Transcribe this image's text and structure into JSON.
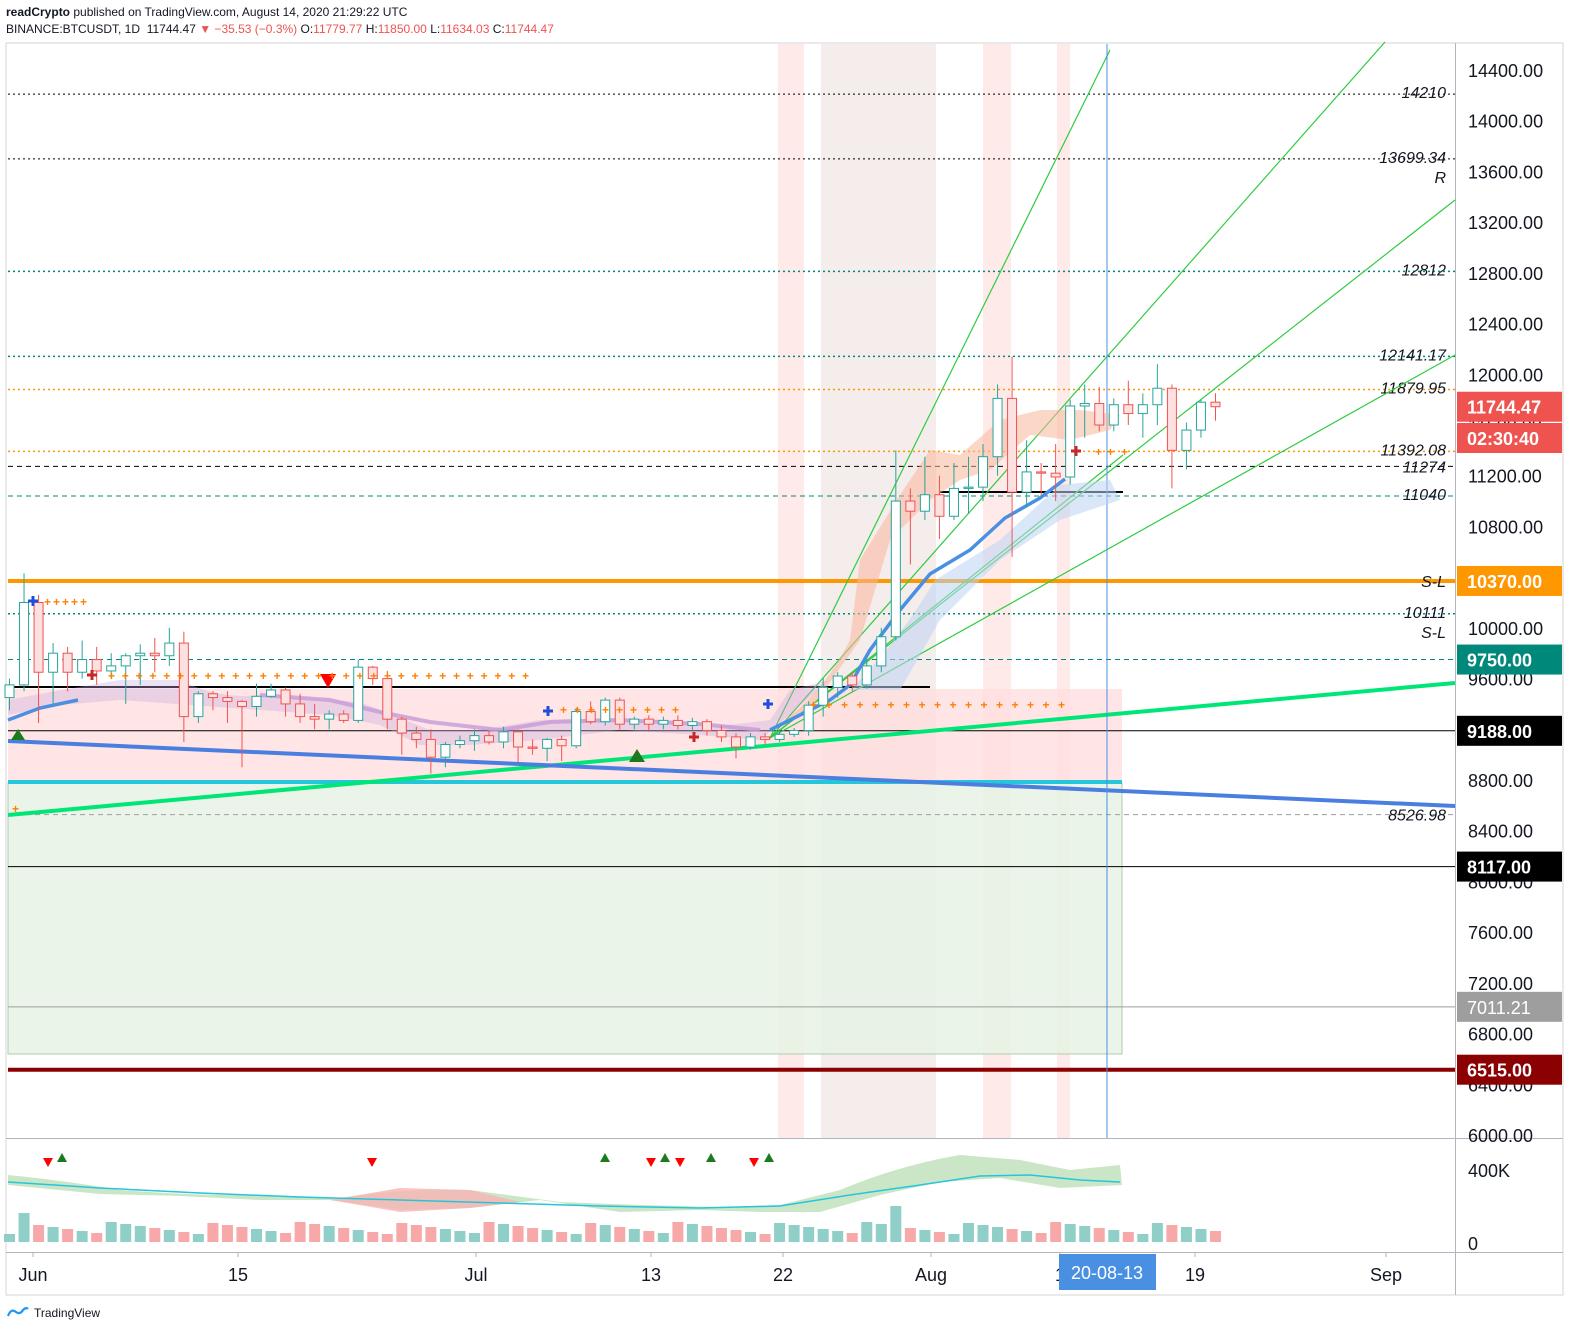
{
  "header": {
    "publisher": "readCrypto",
    "published_text": "published on TradingView.com, August 14, 2020 21:29:22 UTC",
    "symbol": "BINANCE:BTCUSDT, 1D",
    "last": "11744.47",
    "change": "▼ −35.53 (−0.3%)",
    "o_label": "O:",
    "o": "11779.77",
    "h_label": "H:",
    "h": "11850.00",
    "l_label": "L:",
    "l": "11634.03",
    "c_label": "C:",
    "c": "11744.47"
  },
  "footer": {
    "brand": "TradingView"
  },
  "colors": {
    "up": "#26a69a",
    "down": "#ef5350",
    "orange": "#ff9800",
    "green": "#00e676",
    "blue": "#4a90e2"
  },
  "chart_data": {
    "type": "candlestick",
    "timeframe": "1D",
    "ylim": [
      6000,
      14600
    ],
    "y_ticks": [
      "14400.00",
      "14000.00",
      "13600.00",
      "13200.00",
      "12800.00",
      "12400.00",
      "12000.00",
      "11600.00",
      "11200.00",
      "10800.00",
      "10400.00",
      "10000.00",
      "9600.00",
      "9200.00",
      "8800.00",
      "8400.00",
      "8000.00",
      "7600.00",
      "7200.00",
      "6800.00",
      "6400.00",
      "6000.00"
    ],
    "x_ticks": [
      {
        "label": "Jun",
        "day": 1
      },
      {
        "label": "15",
        "day": 15
      },
      {
        "label": "Jul",
        "day": 31
      },
      {
        "label": "13",
        "day": 43
      },
      {
        "label": "22",
        "day": 52
      },
      {
        "label": "Aug",
        "day": 62
      },
      {
        "label": "1",
        "day": 71
      },
      {
        "label": "19",
        "day": 80
      },
      {
        "label": "Sep",
        "day": 93
      }
    ],
    "cursor_date": "20-08-13",
    "candles": [
      {
        "o": 9450,
        "h": 9600,
        "l": 9350,
        "c": 9550
      },
      {
        "o": 9550,
        "h": 10430,
        "l": 9500,
        "c": 10200
      },
      {
        "o": 10200,
        "h": 10260,
        "l": 9250,
        "c": 9650
      },
      {
        "o": 9650,
        "h": 9880,
        "l": 9400,
        "c": 9800
      },
      {
        "o": 9800,
        "h": 9850,
        "l": 9500,
        "c": 9650
      },
      {
        "o": 9650,
        "h": 9900,
        "l": 9600,
        "c": 9750
      },
      {
        "o": 9750,
        "h": 9850,
        "l": 9550,
        "c": 9660
      },
      {
        "o": 9660,
        "h": 9800,
        "l": 9600,
        "c": 9700
      },
      {
        "o": 9700,
        "h": 9800,
        "l": 9400,
        "c": 9780
      },
      {
        "o": 9780,
        "h": 9870,
        "l": 9550,
        "c": 9800
      },
      {
        "o": 9800,
        "h": 9920,
        "l": 9650,
        "c": 9780
      },
      {
        "o": 9780,
        "h": 10000,
        "l": 9700,
        "c": 9880
      },
      {
        "o": 9880,
        "h": 9970,
        "l": 9100,
        "c": 9300
      },
      {
        "o": 9300,
        "h": 9500,
        "l": 9250,
        "c": 9480
      },
      {
        "o": 9480,
        "h": 9500,
        "l": 9350,
        "c": 9450
      },
      {
        "o": 9450,
        "h": 9500,
        "l": 9250,
        "c": 9420
      },
      {
        "o": 9420,
        "h": 9430,
        "l": 8900,
        "c": 9380
      },
      {
        "o": 9380,
        "h": 9560,
        "l": 9300,
        "c": 9460
      },
      {
        "o": 9460,
        "h": 9560,
        "l": 9450,
        "c": 9510
      },
      {
        "o": 9510,
        "h": 9530,
        "l": 9300,
        "c": 9400
      },
      {
        "o": 9400,
        "h": 9480,
        "l": 9250,
        "c": 9300
      },
      {
        "o": 9300,
        "h": 9400,
        "l": 9200,
        "c": 9280
      },
      {
        "o": 9280,
        "h": 9350,
        "l": 9200,
        "c": 9320
      },
      {
        "o": 9320,
        "h": 9350,
        "l": 9250,
        "c": 9270
      },
      {
        "o": 9270,
        "h": 9750,
        "l": 9250,
        "c": 9690
      },
      {
        "o": 9690,
        "h": 9700,
        "l": 9550,
        "c": 9600
      },
      {
        "o": 9600,
        "h": 9660,
        "l": 9200,
        "c": 9280
      },
      {
        "o": 9280,
        "h": 9300,
        "l": 9000,
        "c": 9170
      },
      {
        "o": 9170,
        "h": 9220,
        "l": 9050,
        "c": 9120
      },
      {
        "o": 9120,
        "h": 9200,
        "l": 8850,
        "c": 8980
      },
      {
        "o": 8980,
        "h": 9100,
        "l": 8900,
        "c": 9080
      },
      {
        "o": 9080,
        "h": 9150,
        "l": 9050,
        "c": 9110
      },
      {
        "o": 9110,
        "h": 9200,
        "l": 9030,
        "c": 9150
      },
      {
        "o": 9150,
        "h": 9190,
        "l": 9080,
        "c": 9100
      },
      {
        "o": 9100,
        "h": 9220,
        "l": 9050,
        "c": 9180
      },
      {
        "o": 9180,
        "h": 9200,
        "l": 8940,
        "c": 9060
      },
      {
        "o": 9060,
        "h": 9120,
        "l": 9000,
        "c": 9050
      },
      {
        "o": 9050,
        "h": 9130,
        "l": 8950,
        "c": 9120
      },
      {
        "o": 9120,
        "h": 9150,
        "l": 8950,
        "c": 9070
      },
      {
        "o": 9070,
        "h": 9370,
        "l": 9050,
        "c": 9340
      },
      {
        "o": 9340,
        "h": 9420,
        "l": 9240,
        "c": 9260
      },
      {
        "o": 9260,
        "h": 9450,
        "l": 9230,
        "c": 9430
      },
      {
        "o": 9430,
        "h": 9450,
        "l": 9200,
        "c": 9240
      },
      {
        "o": 9240,
        "h": 9300,
        "l": 9200,
        "c": 9280
      },
      {
        "o": 9280,
        "h": 9310,
        "l": 9180,
        "c": 9240
      },
      {
        "o": 9240,
        "h": 9300,
        "l": 9200,
        "c": 9270
      },
      {
        "o": 9270,
        "h": 9310,
        "l": 9200,
        "c": 9230
      },
      {
        "o": 9230,
        "h": 9290,
        "l": 9180,
        "c": 9260
      },
      {
        "o": 9260,
        "h": 9280,
        "l": 9150,
        "c": 9190
      },
      {
        "o": 9190,
        "h": 9230,
        "l": 9100,
        "c": 9140
      },
      {
        "o": 9140,
        "h": 9170,
        "l": 8970,
        "c": 9060
      },
      {
        "o": 9060,
        "h": 9170,
        "l": 9040,
        "c": 9140
      },
      {
        "o": 9140,
        "h": 9170,
        "l": 9080,
        "c": 9120
      },
      {
        "o": 9120,
        "h": 9200,
        "l": 9100,
        "c": 9160
      },
      {
        "o": 9160,
        "h": 9210,
        "l": 9140,
        "c": 9190
      },
      {
        "o": 9190,
        "h": 9420,
        "l": 9150,
        "c": 9390
      },
      {
        "o": 9390,
        "h": 9600,
        "l": 9300,
        "c": 9530
      },
      {
        "o": 9530,
        "h": 9650,
        "l": 9450,
        "c": 9620
      },
      {
        "o": 9620,
        "h": 9650,
        "l": 9500,
        "c": 9550
      },
      {
        "o": 9550,
        "h": 9750,
        "l": 9520,
        "c": 9700
      },
      {
        "o": 9700,
        "h": 10000,
        "l": 9650,
        "c": 9930
      },
      {
        "o": 9930,
        "h": 11400,
        "l": 9900,
        "c": 11000
      },
      {
        "o": 11000,
        "h": 11100,
        "l": 10500,
        "c": 10920
      },
      {
        "o": 10920,
        "h": 11350,
        "l": 10850,
        "c": 11050
      },
      {
        "o": 11050,
        "h": 11200,
        "l": 10700,
        "c": 10880
      },
      {
        "o": 10880,
        "h": 11300,
        "l": 10850,
        "c": 11100
      },
      {
        "o": 11100,
        "h": 11350,
        "l": 10900,
        "c": 11110
      },
      {
        "o": 11110,
        "h": 11450,
        "l": 11000,
        "c": 11350
      },
      {
        "o": 11350,
        "h": 11920,
        "l": 11200,
        "c": 11810
      },
      {
        "o": 11810,
        "h": 12140,
        "l": 10560,
        "c": 11070
      },
      {
        "o": 11070,
        "h": 11480,
        "l": 10950,
        "c": 11230
      },
      {
        "o": 11230,
        "h": 11300,
        "l": 11050,
        "c": 11220
      },
      {
        "o": 11220,
        "h": 11450,
        "l": 11000,
        "c": 11190
      },
      {
        "o": 11190,
        "h": 11800,
        "l": 11130,
        "c": 11750
      },
      {
        "o": 11750,
        "h": 11920,
        "l": 11500,
        "c": 11770
      },
      {
        "o": 11770,
        "h": 11900,
        "l": 11550,
        "c": 11600
      },
      {
        "o": 11600,
        "h": 11810,
        "l": 11550,
        "c": 11760
      },
      {
        "o": 11760,
        "h": 11950,
        "l": 11600,
        "c": 11690
      },
      {
        "o": 11690,
        "h": 11850,
        "l": 11500,
        "c": 11760
      },
      {
        "o": 11760,
        "h": 12080,
        "l": 11600,
        "c": 11890
      },
      {
        "o": 11890,
        "h": 11920,
        "l": 11100,
        "c": 11400
      },
      {
        "o": 11400,
        "h": 11620,
        "l": 11250,
        "c": 11560
      },
      {
        "o": 11560,
        "h": 11800,
        "l": 11500,
        "c": 11780
      },
      {
        "o": 11780,
        "h": 11850,
        "l": 11634,
        "c": 11744
      }
    ],
    "levels": [
      {
        "label": "14210",
        "value": 14210
      },
      {
        "label": "13699.34",
        "value": 13699,
        "sub": "R"
      },
      {
        "label": "12812",
        "value": 12812
      },
      {
        "label": "12141.17",
        "value": 12141
      },
      {
        "label": "11879.95",
        "value": 11880
      },
      {
        "label": "11392.08",
        "value": 11392
      },
      {
        "label": "11274",
        "value": 11274
      },
      {
        "label": "11040",
        "value": 11040
      },
      {
        "label": "S-L",
        "value": 10370
      },
      {
        "label": "10111",
        "value": 10111,
        "sub": "S-L"
      },
      {
        "label": "8526.98",
        "value": 8527
      }
    ],
    "price_tags": [
      {
        "label": "11744.47",
        "value": 11744,
        "color": "#ef5350"
      },
      {
        "label": "02:30:40",
        "value": 11420,
        "color": "#ef5350"
      },
      {
        "label": "10370.00",
        "value": 10370,
        "color": "#ff9800"
      },
      {
        "label": "9750.00",
        "value": 9750,
        "color": "#00897b"
      },
      {
        "label": "9188.00",
        "value": 9188,
        "color": "#000000"
      },
      {
        "label": "8117.00",
        "value": 8117,
        "color": "#000000"
      },
      {
        "label": "7011.21",
        "value": 7011,
        "color": "#9e9e9e"
      },
      {
        "label": "6515.00",
        "value": 6515,
        "color": "#8b0000"
      }
    ],
    "volume_axis": [
      "400K",
      "0"
    ]
  }
}
